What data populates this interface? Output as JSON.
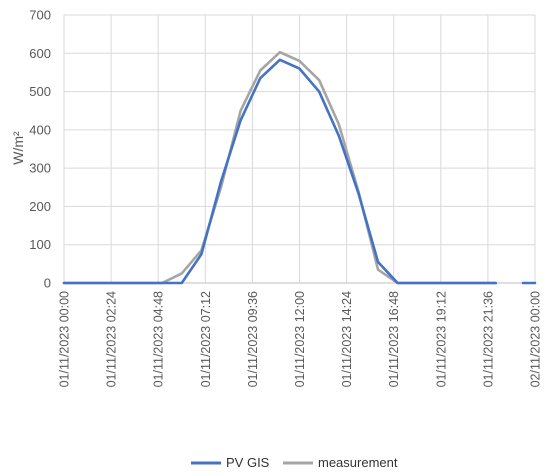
{
  "chart_data": {
    "type": "line",
    "title": "",
    "ylabel": "W/m²",
    "xlabel": "",
    "ylim": [
      0,
      700
    ],
    "yticks": [
      "0",
      "100",
      "200",
      "300",
      "400",
      "500",
      "600",
      "700"
    ],
    "xticks": [
      "01/11/2023 00:00",
      "01/11/2023 02:24",
      "01/11/2023 04:48",
      "01/11/2023 07:12",
      "01/11/2023 09:36",
      "01/11/2023 12:00",
      "01/11/2023 14:24",
      "01/11/2023 16:48",
      "01/11/2023 19:12",
      "01/11/2023 21:36",
      "02/11/2023 00:00"
    ],
    "grid": "vertical and horizontal",
    "legend_position": "bottom",
    "x": [
      "01/11/2023 00:00",
      "01/11/2023 01:00",
      "01/11/2023 02:00",
      "01/11/2023 03:00",
      "01/11/2023 04:00",
      "01/11/2023 05:00",
      "01/11/2023 06:00",
      "01/11/2023 07:00",
      "01/11/2023 08:00",
      "01/11/2023 09:00",
      "01/11/2023 10:00",
      "01/11/2023 11:00",
      "01/11/2023 12:00",
      "01/11/2023 13:00",
      "01/11/2023 14:00",
      "01/11/2023 15:00",
      "01/11/2023 16:00",
      "01/11/2023 17:00",
      "01/11/2023 18:00",
      "01/11/2023 19:00",
      "01/11/2023 20:00",
      "01/11/2023 21:00",
      "01/11/2023 22:00",
      "01/11/2023 23:00",
      "02/11/2023 00:00"
    ],
    "series": [
      {
        "name": "PV GIS",
        "color": "#4472C4",
        "values": [
          0,
          0,
          0,
          0,
          0,
          0,
          0,
          75,
          265,
          425,
          535,
          583,
          560,
          500,
          385,
          235,
          55,
          0,
          0,
          0,
          0,
          0,
          0,
          null,
          0
        ]
      },
      {
        "name": "measurement",
        "color": "#A5A5A5",
        "values": [
          0,
          0,
          0,
          0,
          0,
          0,
          25,
          85,
          250,
          450,
          555,
          603,
          580,
          530,
          415,
          240,
          35,
          0,
          0,
          0,
          0,
          0,
          0,
          null,
          null
        ]
      }
    ]
  }
}
